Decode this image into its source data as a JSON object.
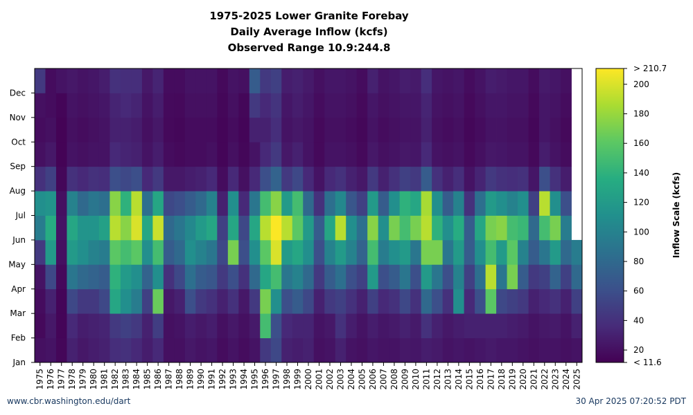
{
  "title": {
    "line1": "1975-2025 Lower Granite Forebay",
    "line2": "Daily Average Inflow (kcfs)",
    "line3": "Observed Range 10.9:244.8"
  },
  "footer": {
    "left": "www.cbr.washington.edu/dart",
    "right": "30 Apr 2025 07:20:52 PDT"
  },
  "colors": {
    "low": "#440154",
    "mid": "#21918c",
    "high": "#fde725",
    "missing": "#ffffff"
  },
  "chart_data": {
    "type": "heatmap",
    "x": [
      1975,
      1976,
      1977,
      1978,
      1979,
      1980,
      1981,
      1982,
      1983,
      1984,
      1985,
      1986,
      1987,
      1988,
      1989,
      1990,
      1991,
      1992,
      1993,
      1994,
      1995,
      1996,
      1997,
      1998,
      1999,
      2000,
      2001,
      2002,
      2003,
      2004,
      2005,
      2006,
      2007,
      2008,
      2009,
      2010,
      2011,
      2012,
      2013,
      2014,
      2015,
      2016,
      2017,
      2018,
      2019,
      2020,
      2021,
      2022,
      2023,
      2024,
      2025
    ],
    "y": [
      "Jan",
      "Feb",
      "Mar",
      "Apr",
      "May",
      "Jun",
      "Jul",
      "Aug",
      "Sep",
      "Oct",
      "Nov",
      "Dec"
    ],
    "zlabel": "Inflow Scale (kcfs)",
    "zlim": [
      11.6,
      210.7
    ],
    "colorbar_ticks": [
      20,
      40,
      60,
      80,
      100,
      120,
      140,
      160,
      180,
      200
    ],
    "colorbar_max_label": "> 210.7",
    "colorbar_min_label": "< 11.6",
    "colormap": "viridis",
    "values": [
      [
        20,
        16,
        18,
        22,
        45,
        95,
        110,
        40,
        20,
        18,
        20,
        45
      ],
      [
        22,
        25,
        30,
        55,
        120,
        135,
        115,
        50,
        25,
        20,
        18,
        18
      ],
      [
        15,
        14,
        14,
        16,
        20,
        22,
        20,
        15,
        13,
        13,
        14,
        22
      ],
      [
        30,
        35,
        55,
        90,
        120,
        130,
        100,
        40,
        22,
        20,
        22,
        25
      ],
      [
        25,
        28,
        45,
        80,
        110,
        115,
        80,
        35,
        20,
        18,
        20,
        22
      ],
      [
        28,
        30,
        45,
        75,
        100,
        115,
        90,
        40,
        22,
        20,
        22,
        24
      ],
      [
        30,
        32,
        55,
        70,
        95,
        125,
        85,
        38,
        22,
        22,
        24,
        28
      ],
      [
        38,
        45,
        130,
        140,
        160,
        190,
        175,
        60,
        35,
        30,
        32,
        40
      ],
      [
        40,
        50,
        110,
        120,
        150,
        175,
        140,
        55,
        32,
        30,
        35,
        38
      ],
      [
        35,
        45,
        95,
        110,
        160,
        200,
        190,
        60,
        30,
        28,
        32,
        38
      ],
      [
        28,
        30,
        50,
        75,
        110,
        130,
        85,
        35,
        22,
        20,
        22,
        25
      ],
      [
        35,
        48,
        165,
        110,
        150,
        195,
        130,
        45,
        28,
        25,
        28,
        32
      ],
      [
        20,
        20,
        25,
        40,
        70,
        80,
        55,
        25,
        18,
        16,
        17,
        18
      ],
      [
        20,
        22,
        30,
        55,
        80,
        90,
        60,
        25,
        16,
        15,
        16,
        18
      ],
      [
        25,
        28,
        60,
        85,
        110,
        105,
        70,
        28,
        18,
        18,
        20,
        22
      ],
      [
        22,
        25,
        45,
        70,
        100,
        120,
        80,
        30,
        18,
        18,
        20,
        22
      ],
      [
        24,
        28,
        40,
        65,
        90,
        130,
        100,
        35,
        20,
        18,
        20,
        22
      ],
      [
        18,
        20,
        30,
        45,
        55,
        50,
        30,
        18,
        14,
        14,
        15,
        16
      ],
      [
        22,
        25,
        40,
        60,
        170,
        130,
        110,
        35,
        20,
        18,
        20,
        22
      ],
      [
        18,
        20,
        25,
        40,
        60,
        55,
        35,
        20,
        15,
        14,
        15,
        20
      ],
      [
        22,
        26,
        45,
        80,
        110,
        130,
        90,
        35,
        22,
        30,
        45,
        70
      ],
      [
        45,
        150,
        170,
        130,
        160,
        190,
        150,
        60,
        35,
        30,
        35,
        45
      ],
      [
        55,
        60,
        110,
        150,
        200,
        210,
        175,
        75,
        45,
        38,
        42,
        50
      ],
      [
        30,
        35,
        60,
        90,
        120,
        190,
        120,
        45,
        25,
        22,
        24,
        28
      ],
      [
        28,
        32,
        70,
        100,
        130,
        160,
        150,
        55,
        30,
        25,
        28,
        30
      ],
      [
        30,
        32,
        55,
        80,
        110,
        120,
        80,
        35,
        22,
        22,
        24,
        26
      ],
      [
        20,
        22,
        30,
        45,
        60,
        70,
        40,
        22,
        16,
        16,
        18,
        20
      ],
      [
        22,
        25,
        45,
        70,
        100,
        130,
        85,
        35,
        22,
        20,
        22,
        24
      ],
      [
        30,
        40,
        50,
        85,
        120,
        190,
        105,
        40,
        22,
        20,
        22,
        24
      ],
      [
        22,
        28,
        40,
        60,
        100,
        110,
        65,
        30,
        20,
        18,
        20,
        22
      ],
      [
        20,
        22,
        30,
        50,
        75,
        85,
        50,
        25,
        16,
        15,
        16,
        18
      ],
      [
        24,
        28,
        50,
        120,
        150,
        175,
        120,
        45,
        25,
        22,
        24,
        30
      ],
      [
        22,
        24,
        35,
        60,
        95,
        110,
        70,
        30,
        20,
        18,
        20,
        22
      ],
      [
        22,
        26,
        40,
        70,
        110,
        170,
        110,
        40,
        22,
        20,
        22,
        24
      ],
      [
        25,
        30,
        55,
        90,
        120,
        150,
        140,
        50,
        25,
        22,
        24,
        28
      ],
      [
        24,
        26,
        40,
        60,
        90,
        170,
        130,
        45,
        24,
        22,
        24,
        26
      ],
      [
        28,
        40,
        80,
        120,
        170,
        190,
        185,
        70,
        35,
        30,
        32,
        38
      ],
      [
        26,
        30,
        60,
        90,
        170,
        140,
        110,
        40,
        22,
        20,
        22,
        24
      ],
      [
        22,
        25,
        40,
        60,
        90,
        110,
        70,
        30,
        20,
        18,
        20,
        22
      ],
      [
        24,
        28,
        110,
        100,
        120,
        135,
        100,
        38,
        22,
        20,
        22,
        24
      ],
      [
        22,
        30,
        35,
        50,
        70,
        70,
        40,
        22,
        16,
        15,
        16,
        18
      ],
      [
        24,
        30,
        60,
        85,
        110,
        130,
        85,
        32,
        20,
        18,
        20,
        22
      ],
      [
        26,
        30,
        160,
        190,
        150,
        170,
        120,
        45,
        25,
        22,
        24,
        28
      ],
      [
        24,
        30,
        55,
        90,
        120,
        175,
        110,
        40,
        24,
        22,
        24,
        26
      ],
      [
        24,
        28,
        50,
        170,
        160,
        150,
        100,
        38,
        22,
        20,
        22,
        24
      ],
      [
        22,
        26,
        45,
        70,
        100,
        145,
        110,
        40,
        22,
        20,
        22,
        24
      ],
      [
        20,
        22,
        30,
        45,
        70,
        80,
        50,
        24,
        16,
        15,
        16,
        18
      ],
      [
        22,
        25,
        35,
        50,
        90,
        150,
        190,
        60,
        28,
        24,
        24,
        26
      ],
      [
        22,
        26,
        40,
        75,
        120,
        170,
        110,
        40,
        22,
        20,
        22,
        24
      ],
      [
        20,
        22,
        30,
        50,
        80,
        95,
        60,
        28,
        18,
        16,
        18,
        20
      ],
      [
        22,
        30,
        50,
        80,
        95
      ]
    ]
  }
}
